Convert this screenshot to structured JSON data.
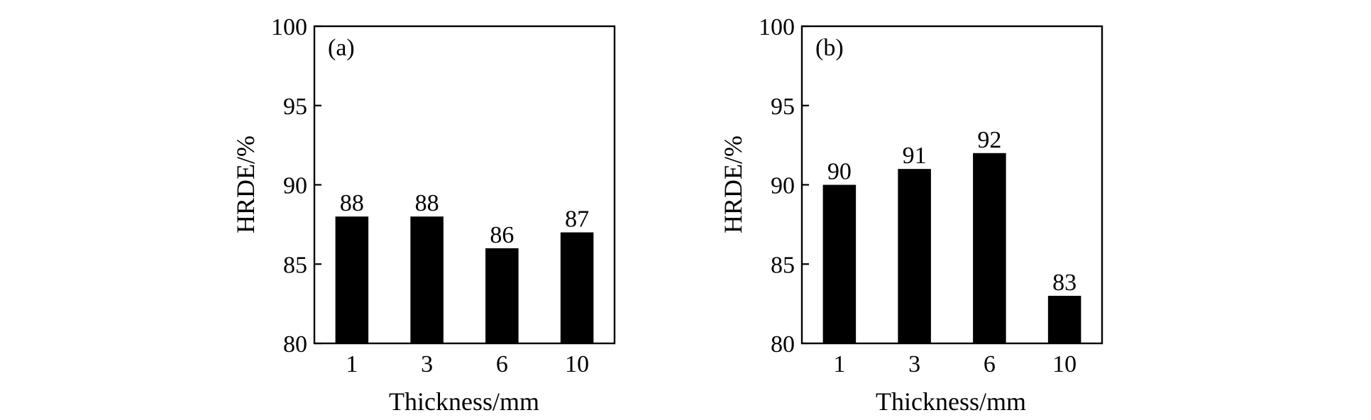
{
  "chart_data": [
    {
      "type": "bar",
      "panel_label": "(a)",
      "categories": [
        "1",
        "3",
        "6",
        "10"
      ],
      "values": [
        88,
        88,
        86,
        87
      ],
      "data_labels": [
        "88",
        "88",
        "86",
        "87"
      ],
      "xlabel": "Thickness/mm",
      "ylabel": "HRDE/%",
      "ylim": [
        80,
        100
      ],
      "yticks": [
        80,
        85,
        90,
        95,
        100
      ],
      "bar_color": "#000000",
      "grid": false
    },
    {
      "type": "bar",
      "panel_label": "(b)",
      "categories": [
        "1",
        "3",
        "6",
        "10"
      ],
      "values": [
        90,
        91,
        92,
        83
      ],
      "data_labels": [
        "90",
        "91",
        "92",
        "83"
      ],
      "xlabel": "Thickness/mm",
      "ylabel": "HRDE/%",
      "ylim": [
        80,
        100
      ],
      "yticks": [
        80,
        85,
        90,
        95,
        100
      ],
      "bar_color": "#000000",
      "grid": false
    }
  ]
}
